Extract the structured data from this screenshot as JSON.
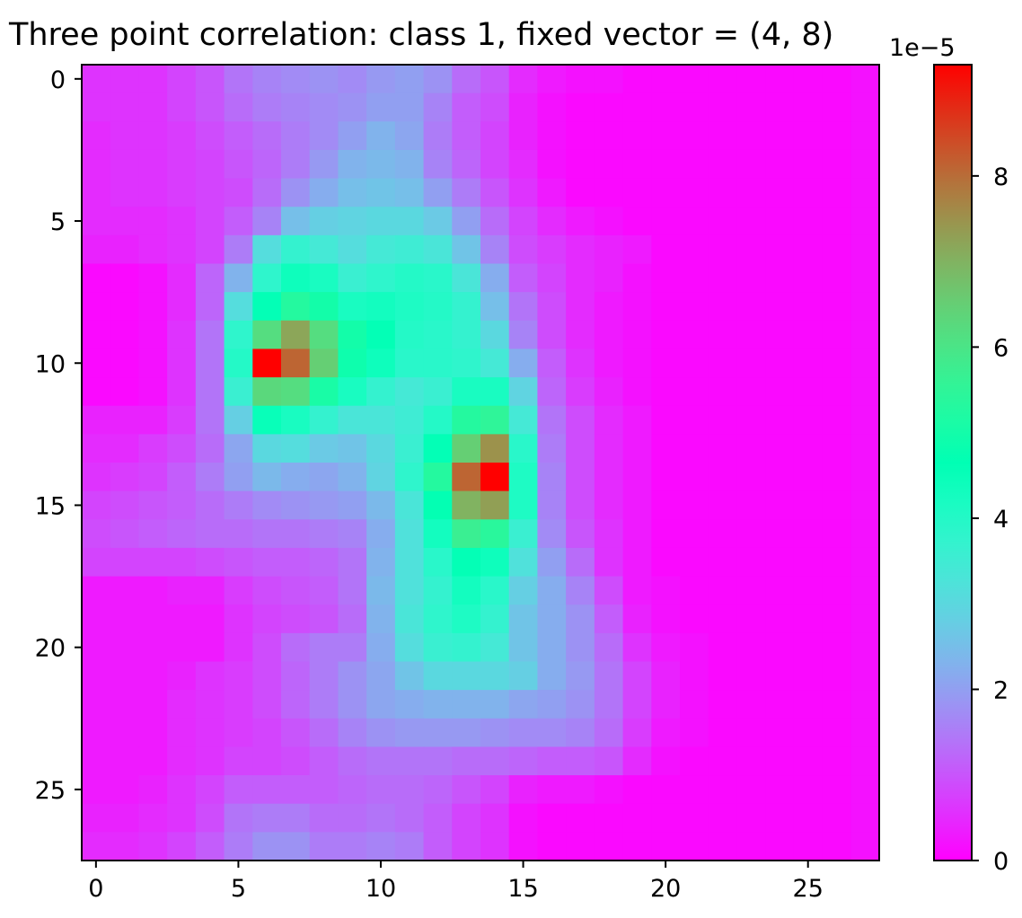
{
  "chart_data": {
    "type": "heatmap",
    "title": "Three point correlation: class 1, fixed vector = (4, 8)",
    "colormap": "rainbow",
    "grid_size": [
      28,
      28
    ],
    "x_axis": {
      "label": "",
      "ticks": [
        0,
        5,
        10,
        15,
        20,
        25
      ],
      "tick_labels": [
        "0",
        "5",
        "10",
        "15",
        "20",
        "25"
      ],
      "range": [
        -0.5,
        27.5
      ]
    },
    "y_axis": {
      "label": "",
      "ticks": [
        0,
        5,
        10,
        15,
        20,
        25
      ],
      "tick_labels": [
        "0",
        "5",
        "10",
        "15",
        "20",
        "25"
      ],
      "range": [
        27.5,
        -0.5
      ],
      "inverted": true
    },
    "colorbar": {
      "ticks": [
        0,
        2,
        4,
        6,
        8
      ],
      "tick_labels": [
        "0",
        "2",
        "4",
        "6",
        "8"
      ],
      "offset_label": "1e−5",
      "vmin": 0,
      "vmax": 9.3
    },
    "grid_scale": "1e-5",
    "grid": [
      [
        0.6,
        0.6,
        0.6,
        0.8,
        1.0,
        1.4,
        1.6,
        1.7,
        1.8,
        1.7,
        1.9,
        2.0,
        1.8,
        1.3,
        1.0,
        0.5,
        0.3,
        0.2,
        0.2,
        0.1,
        0.1,
        0.1,
        0.1,
        0.1,
        0.1,
        0.1,
        0.1,
        0.2
      ],
      [
        0.6,
        0.6,
        0.6,
        0.8,
        1.0,
        1.3,
        1.5,
        1.6,
        1.7,
        1.8,
        2.0,
        2.0,
        1.6,
        1.1,
        0.9,
        0.4,
        0.2,
        0.1,
        0.1,
        0.1,
        0.1,
        0.1,
        0.1,
        0.1,
        0.1,
        0.1,
        0.1,
        0.2
      ],
      [
        0.5,
        0.6,
        0.6,
        0.7,
        0.9,
        1.1,
        1.3,
        1.5,
        1.7,
        2.0,
        2.3,
        2.1,
        1.5,
        1.1,
        0.8,
        0.4,
        0.2,
        0.1,
        0.1,
        0.1,
        0.1,
        0.1,
        0.1,
        0.1,
        0.1,
        0.1,
        0.1,
        0.2
      ],
      [
        0.5,
        0.6,
        0.6,
        0.7,
        0.8,
        1.0,
        1.2,
        1.5,
        1.9,
        2.3,
        2.4,
        2.3,
        1.6,
        1.2,
        0.8,
        0.5,
        0.2,
        0.1,
        0.1,
        0.1,
        0.1,
        0.1,
        0.1,
        0.1,
        0.1,
        0.1,
        0.1,
        0.2
      ],
      [
        0.5,
        0.6,
        0.6,
        0.7,
        0.8,
        0.9,
        1.3,
        1.8,
        2.2,
        2.5,
        2.6,
        2.5,
        2.0,
        1.5,
        1.0,
        0.6,
        0.3,
        0.1,
        0.1,
        0.1,
        0.1,
        0.1,
        0.1,
        0.1,
        0.1,
        0.1,
        0.1,
        0.2
      ],
      [
        0.5,
        0.5,
        0.5,
        0.6,
        0.8,
        1.1,
        1.6,
        2.5,
        2.8,
        2.9,
        3.0,
        3.0,
        2.7,
        2.0,
        1.3,
        0.8,
        0.5,
        0.3,
        0.2,
        0.1,
        0.1,
        0.1,
        0.1,
        0.1,
        0.1,
        0.1,
        0.1,
        0.2
      ],
      [
        0.4,
        0.4,
        0.5,
        0.6,
        0.8,
        1.5,
        3.1,
        3.7,
        3.4,
        3.1,
        3.4,
        3.5,
        3.3,
        2.6,
        1.6,
        0.9,
        0.7,
        0.5,
        0.4,
        0.3,
        0.1,
        0.1,
        0.1,
        0.1,
        0.1,
        0.1,
        0.1,
        0.2
      ],
      [
        0.1,
        0.1,
        0.2,
        0.5,
        1.2,
        2.3,
        3.8,
        4.4,
        4.2,
        3.6,
        3.8,
        4.0,
        3.9,
        3.3,
        2.2,
        1.1,
        0.8,
        0.5,
        0.4,
        0.2,
        0.1,
        0.1,
        0.1,
        0.1,
        0.1,
        0.1,
        0.1,
        0.2
      ],
      [
        0.1,
        0.1,
        0.2,
        0.5,
        1.2,
        3.1,
        4.6,
        5.3,
        5.0,
        4.2,
        4.3,
        4.1,
        4.0,
        3.7,
        2.5,
        1.4,
        0.9,
        0.5,
        0.3,
        0.2,
        0.1,
        0.1,
        0.1,
        0.1,
        0.1,
        0.1,
        0.1,
        0.2
      ],
      [
        0.1,
        0.1,
        0.2,
        0.6,
        1.4,
        3.8,
        6.2,
        7.2,
        6.2,
        5.0,
        4.6,
        4.0,
        3.9,
        3.7,
        3.0,
        1.6,
        0.9,
        0.5,
        0.3,
        0.2,
        0.1,
        0.1,
        0.1,
        0.1,
        0.1,
        0.1,
        0.1,
        0.2
      ],
      [
        0.1,
        0.1,
        0.2,
        0.6,
        1.4,
        4.0,
        9.3,
        8.1,
        6.5,
        4.9,
        4.4,
        3.9,
        3.9,
        3.8,
        3.4,
        2.2,
        1.1,
        0.6,
        0.3,
        0.2,
        0.1,
        0.1,
        0.1,
        0.1,
        0.1,
        0.1,
        0.1,
        0.2
      ],
      [
        0.1,
        0.1,
        0.2,
        0.6,
        1.4,
        3.6,
        6.3,
        6.2,
        5.1,
        4.2,
        3.7,
        3.4,
        3.6,
        4.2,
        4.2,
        2.9,
        1.2,
        0.7,
        0.4,
        0.2,
        0.1,
        0.1,
        0.1,
        0.1,
        0.1,
        0.1,
        0.1,
        0.2
      ],
      [
        0.4,
        0.4,
        0.4,
        0.7,
        1.4,
        2.8,
        4.5,
        4.2,
        3.7,
        3.3,
        3.3,
        3.5,
        4.0,
        5.3,
        5.5,
        3.4,
        1.4,
        0.9,
        0.5,
        0.3,
        0.1,
        0.1,
        0.1,
        0.1,
        0.1,
        0.1,
        0.1,
        0.2
      ],
      [
        0.5,
        0.5,
        0.7,
        0.9,
        1.3,
        2.1,
        3.0,
        3.1,
        2.7,
        2.6,
        3.0,
        3.6,
        4.6,
        6.5,
        7.5,
        3.9,
        1.5,
        0.9,
        0.5,
        0.3,
        0.1,
        0.1,
        0.1,
        0.1,
        0.1,
        0.1,
        0.1,
        0.2
      ],
      [
        0.6,
        0.7,
        0.8,
        1.1,
        1.5,
        2.0,
        2.4,
        2.2,
        2.1,
        2.3,
        2.9,
        3.8,
        5.3,
        8.1,
        9.3,
        4.1,
        1.6,
        0.9,
        0.5,
        0.3,
        0.1,
        0.1,
        0.1,
        0.1,
        0.1,
        0.1,
        0.1,
        0.2
      ],
      [
        0.8,
        0.9,
        1.0,
        1.1,
        1.3,
        1.5,
        1.7,
        1.8,
        1.9,
        2.0,
        2.4,
        3.3,
        4.7,
        7.0,
        7.3,
        4.1,
        1.6,
        0.9,
        0.5,
        0.3,
        0.1,
        0.1,
        0.1,
        0.1,
        0.1,
        0.1,
        0.1,
        0.2
      ],
      [
        0.9,
        1.0,
        1.1,
        1.2,
        1.3,
        1.3,
        1.4,
        1.4,
        1.5,
        1.6,
        2.2,
        3.2,
        4.3,
        5.7,
        5.4,
        3.6,
        1.7,
        1.0,
        0.6,
        0.3,
        0.1,
        0.1,
        0.1,
        0.1,
        0.1,
        0.1,
        0.1,
        0.2
      ],
      [
        0.8,
        0.8,
        0.8,
        0.8,
        0.9,
        1.0,
        1.1,
        1.1,
        1.2,
        1.4,
        2.3,
        3.2,
        3.9,
        4.6,
        4.4,
        3.2,
        2.0,
        1.3,
        0.6,
        0.3,
        0.1,
        0.1,
        0.1,
        0.1,
        0.1,
        0.1,
        0.1,
        0.2
      ],
      [
        0.3,
        0.3,
        0.3,
        0.4,
        0.4,
        0.7,
        0.9,
        1.0,
        1.1,
        1.4,
        2.4,
        3.2,
        3.7,
        4.3,
        3.9,
        2.8,
        2.2,
        1.6,
        0.9,
        0.3,
        0.2,
        0.1,
        0.1,
        0.1,
        0.1,
        0.1,
        0.1,
        0.2
      ],
      [
        0.3,
        0.3,
        0.3,
        0.3,
        0.3,
        0.6,
        0.8,
        0.9,
        1.0,
        1.3,
        2.3,
        3.3,
        3.8,
        4.1,
        3.7,
        2.6,
        2.2,
        1.8,
        1.1,
        0.4,
        0.2,
        0.1,
        0.1,
        0.1,
        0.1,
        0.1,
        0.1,
        0.2
      ],
      [
        0.3,
        0.3,
        0.3,
        0.3,
        0.3,
        0.6,
        0.9,
        1.3,
        1.5,
        1.5,
        2.2,
        3.1,
        3.6,
        3.7,
        3.4,
        2.6,
        2.2,
        1.8,
        1.3,
        0.6,
        0.3,
        0.2,
        0.1,
        0.1,
        0.1,
        0.1,
        0.1,
        0.2
      ],
      [
        0.3,
        0.3,
        0.3,
        0.4,
        0.6,
        0.7,
        0.9,
        1.2,
        1.5,
        1.8,
        2.1,
        2.6,
        3.0,
        3.0,
        3.0,
        2.8,
        2.2,
        1.9,
        1.4,
        0.8,
        0.4,
        0.2,
        0.1,
        0.1,
        0.1,
        0.1,
        0.1,
        0.2
      ],
      [
        0.3,
        0.3,
        0.3,
        0.5,
        0.6,
        0.7,
        0.9,
        1.2,
        1.5,
        1.8,
        2.1,
        2.2,
        2.3,
        2.3,
        2.3,
        2.1,
        2.0,
        1.8,
        1.4,
        0.8,
        0.4,
        0.2,
        0.1,
        0.1,
        0.1,
        0.1,
        0.1,
        0.2
      ],
      [
        0.3,
        0.3,
        0.3,
        0.5,
        0.6,
        0.7,
        0.8,
        1.0,
        1.3,
        1.6,
        1.8,
        1.9,
        1.9,
        1.9,
        1.8,
        1.7,
        1.7,
        1.6,
        1.3,
        0.7,
        0.3,
        0.2,
        0.1,
        0.1,
        0.1,
        0.1,
        0.1,
        0.2
      ],
      [
        0.3,
        0.3,
        0.3,
        0.5,
        0.6,
        0.8,
        0.8,
        0.9,
        1.1,
        1.3,
        1.4,
        1.4,
        1.4,
        1.3,
        1.3,
        1.2,
        1.1,
        1.1,
        1.0,
        0.5,
        0.2,
        0.1,
        0.1,
        0.1,
        0.1,
        0.1,
        0.1,
        0.2
      ],
      [
        0.3,
        0.3,
        0.4,
        0.6,
        0.8,
        1.1,
        1.1,
        1.1,
        1.1,
        1.2,
        1.3,
        1.3,
        1.2,
        1.0,
        0.8,
        0.4,
        0.3,
        0.3,
        0.2,
        0.1,
        0.1,
        0.1,
        0.1,
        0.1,
        0.1,
        0.1,
        0.1,
        0.2
      ],
      [
        0.4,
        0.4,
        0.5,
        0.6,
        0.9,
        1.4,
        1.5,
        1.5,
        1.3,
        1.3,
        1.4,
        1.3,
        1.1,
        0.8,
        0.6,
        0.2,
        0.1,
        0.1,
        0.1,
        0.1,
        0.1,
        0.1,
        0.1,
        0.1,
        0.1,
        0.1,
        0.1,
        0.2
      ],
      [
        0.5,
        0.5,
        0.6,
        0.8,
        1.1,
        1.5,
        1.8,
        1.8,
        1.5,
        1.5,
        1.6,
        1.5,
        1.1,
        0.8,
        0.6,
        0.2,
        0.1,
        0.1,
        0.1,
        0.1,
        0.1,
        0.1,
        0.1,
        0.1,
        0.1,
        0.1,
        0.1,
        0.2
      ]
    ]
  }
}
